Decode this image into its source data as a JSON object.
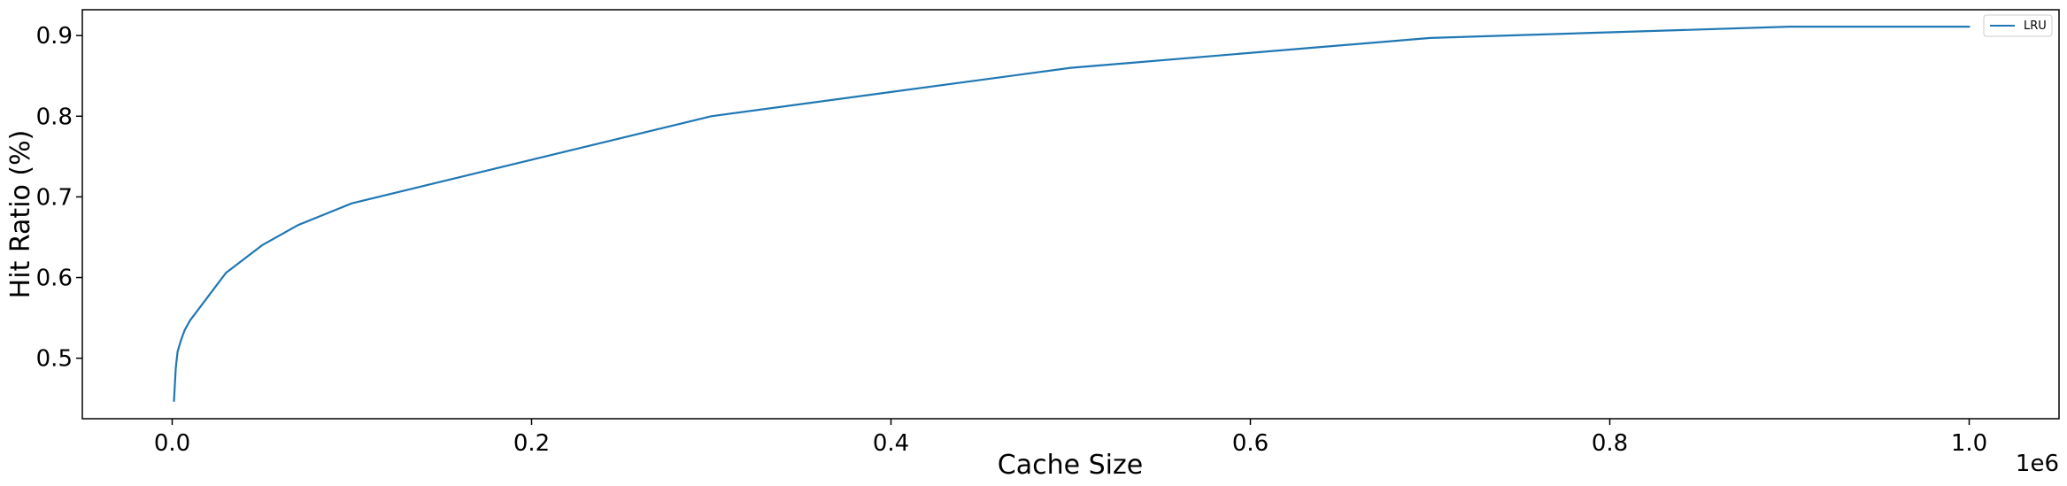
{
  "chart_data": {
    "type": "line",
    "title": "",
    "xlabel": "Cache Size",
    "ylabel": "Hit Ratio (%)",
    "x_offset_label": "1e6",
    "xlim": [
      -0.05,
      1.05
    ],
    "ylim": [
      0.425,
      0.932
    ],
    "x_ticks": [
      0.0,
      0.2,
      0.4,
      0.6,
      0.8,
      1.0
    ],
    "x_tick_labels": [
      "0.0",
      "0.2",
      "0.4",
      "0.6",
      "0.8",
      "1.0"
    ],
    "y_ticks": [
      0.5,
      0.6,
      0.7,
      0.8,
      0.9
    ],
    "y_tick_labels": [
      "0.5",
      "0.6",
      "0.7",
      "0.8",
      "0.9"
    ],
    "grid": false,
    "legend_position": "upper right",
    "series": [
      {
        "name": "LRU",
        "color": "#1f77b4",
        "x": [
          0.001,
          0.002,
          0.003,
          0.005,
          0.007,
          0.01,
          0.03,
          0.05,
          0.07,
          0.1,
          0.3,
          0.5,
          0.7,
          0.9,
          1.0
        ],
        "y": [
          0.447,
          0.488,
          0.508,
          0.523,
          0.535,
          0.547,
          0.606,
          0.64,
          0.665,
          0.692,
          0.8,
          0.86,
          0.897,
          0.911,
          0.911
        ]
      }
    ]
  }
}
